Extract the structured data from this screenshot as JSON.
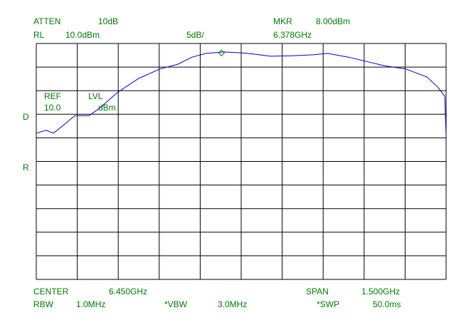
{
  "chart_data": {
    "type": "line",
    "annotations": [
      "ATTEN",
      "10dB",
      "MKR",
      "8.00dBm",
      "RL",
      "10.0dBm",
      "5dB/",
      "6.378GHz",
      "REF",
      "LVL",
      "10.0",
      "dBm",
      "D",
      "R",
      "CENTER",
      "6.450GHz",
      "SPAN",
      "1.500GHz",
      "RBW",
      "1.0MHz",
      "*VBW",
      "3.0MHz",
      "*SWP",
      "50.0ms"
    ],
    "xlim": [
      5.7,
      7.2
    ],
    "ylim": [
      -40,
      10
    ],
    "grid": true,
    "series": [
      {
        "color": "#0000cc",
        "x": [
          5.7,
          5.736,
          5.763,
          5.802,
          5.841,
          5.893,
          5.932,
          5.997,
          6.075,
          6.153,
          6.218,
          6.27,
          6.322,
          6.388,
          6.453,
          6.505,
          6.557,
          6.635,
          6.713,
          6.765,
          6.843,
          6.908,
          6.973,
          7.052,
          7.13,
          7.169,
          7.195,
          7.2
        ],
        "values": [
          -9.0,
          -8.4,
          -9.0,
          -7.2,
          -5.3,
          -5.3,
          -3.7,
          -0.4,
          2.6,
          4.6,
          5.6,
          7.1,
          7.9,
          8.2,
          8.0,
          7.7,
          7.3,
          7.4,
          7.6,
          7.9,
          7.1,
          6.2,
          5.3,
          4.6,
          2.9,
          0.8,
          -1.2,
          -9.5
        ]
      }
    ],
    "marker": {
      "x": 6.378,
      "y": 8.0,
      "color": "#007a00"
    }
  }
}
